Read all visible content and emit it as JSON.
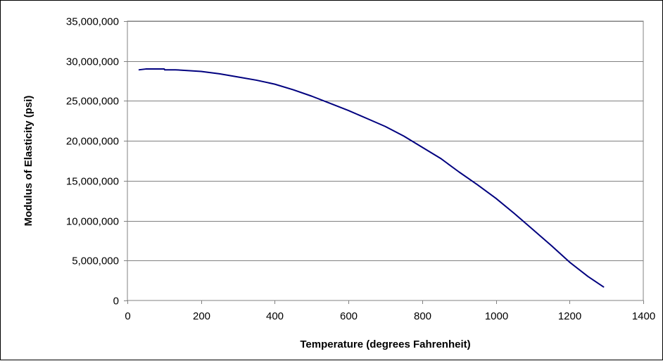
{
  "chart_data": {
    "type": "line",
    "title": "",
    "xlabel": "Temperature (degrees Fahrenheit)",
    "ylabel": "Modulus of Elasticity (psi)",
    "xlim": [
      0,
      1400
    ],
    "ylim": [
      0,
      35000000
    ],
    "x_ticks": [
      0,
      200,
      400,
      600,
      800,
      1000,
      1200,
      1400
    ],
    "x_tick_labels": [
      "0",
      "200",
      "400",
      "600",
      "800",
      "1000",
      "1200",
      "1400"
    ],
    "y_ticks": [
      0,
      5000000,
      10000000,
      15000000,
      20000000,
      25000000,
      30000000,
      35000000
    ],
    "y_tick_labels": [
      "0",
      "5,000,000",
      "10,000,000",
      "15,000,000",
      "20,000,000",
      "25,000,000",
      "30,000,000",
      "35,000,000"
    ],
    "grid": "horizontal",
    "legend": "none",
    "series": [
      {
        "color": "#00007f",
        "x": [
          32,
          50,
          70,
          100,
          101,
          130,
          200,
          250,
          300,
          350,
          400,
          450,
          500,
          550,
          600,
          650,
          700,
          750,
          800,
          850,
          900,
          950,
          1000,
          1050,
          1100,
          1150,
          1200,
          1250,
          1292
        ],
        "y": [
          28900000,
          29000000,
          29000000,
          29000000,
          28900000,
          28900000,
          28700000,
          28400000,
          28000000,
          27600000,
          27100000,
          26400000,
          25600000,
          24700000,
          23800000,
          22800000,
          21800000,
          20600000,
          19200000,
          17800000,
          16100000,
          14500000,
          12800000,
          10900000,
          8900000,
          6900000,
          4800000,
          3000000,
          1700000
        ]
      }
    ]
  }
}
